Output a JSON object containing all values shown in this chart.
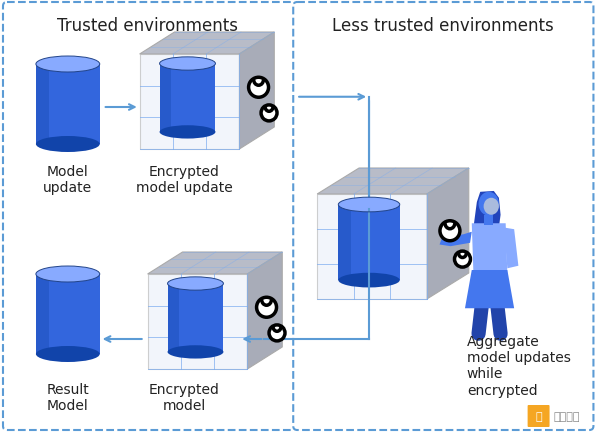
{
  "bg_color": "#ffffff",
  "border_color": "#5b9bd5",
  "left_panel_title": "Trusted environments",
  "right_panel_title": "Less trusted environments",
  "model_update_label": "Model\nupdate",
  "encrypted_model_update_label": "Encrypted\nmodel update",
  "result_model_label": "Result\nModel",
  "encrypted_model_label": "Encrypted\nmodel",
  "aggregate_label": "Aggregate\nmodel updates\nwhile\nencrypted",
  "cyl_blue": "#3366dd",
  "cyl_blue_light": "#5588ff",
  "cyl_blue_dark": "#1144aa",
  "cyl_top_light": "#88aaff",
  "box_front": "#e8eef8",
  "box_top": "#b8bcc8",
  "box_right": "#a8acb8",
  "box_edge": "#aaaaaa",
  "grid_color": "#7aabf0",
  "lock_color": "#111111",
  "arrow_color": "#5b9bd5",
  "person_body": "#4477ee",
  "person_light": "#88aaff",
  "person_dark": "#2244aa",
  "person_skin": "#ddeeff",
  "watermark_bg": "#f5a623",
  "watermark_text": "金色财经",
  "font_color": "#222222",
  "title_fontsize": 12,
  "label_fontsize": 10
}
